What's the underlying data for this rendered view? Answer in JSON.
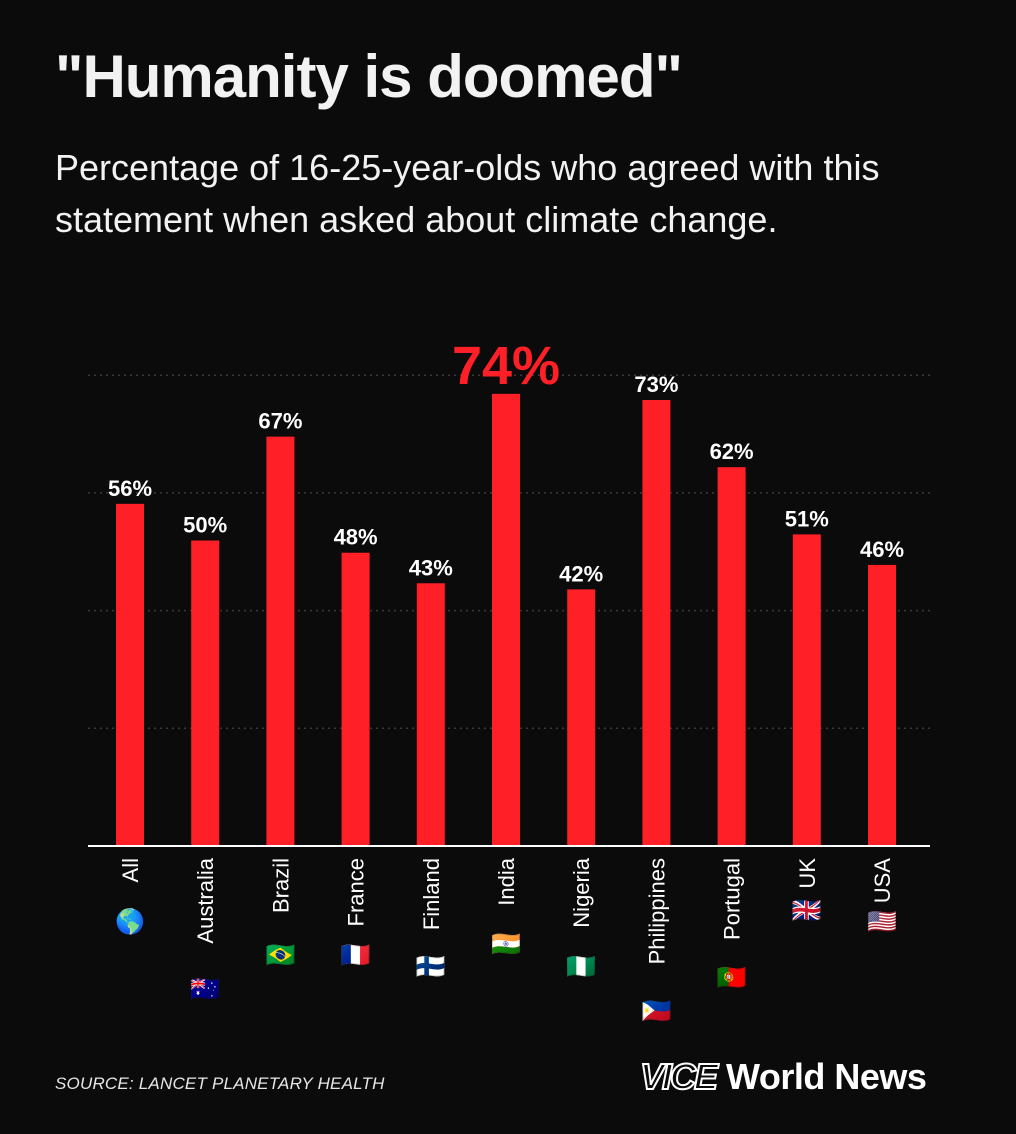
{
  "header": {
    "title": "\"Humanity is doomed\"",
    "subtitle": "Percentage of 16-25-year-olds who agreed with this statement when asked about climate change."
  },
  "chart_data": {
    "type": "bar",
    "categories": [
      "All",
      "Australia",
      "Brazil",
      "France",
      "Finland",
      "India",
      "Nigeria",
      "Philippines",
      "Portugal",
      "UK",
      "USA"
    ],
    "flags": [
      "🌎",
      "🇦🇺",
      "🇧🇷",
      "🇫🇷",
      "🇫🇮",
      "🇮🇳",
      "🇳🇬",
      "🇵🇭",
      "🇵🇹",
      "🇬🇧",
      "🇺🇸"
    ],
    "values": [
      56,
      50,
      67,
      48,
      43,
      74,
      42,
      73,
      62,
      51,
      46
    ],
    "labels": [
      "56%",
      "50%",
      "67%",
      "48%",
      "43%",
      "74%",
      "42%",
      "73%",
      "62%",
      "51%",
      "46%"
    ],
    "highlight_index": 5,
    "ylim": [
      0,
      80
    ],
    "grid": true,
    "colors": {
      "bar": "#ff1f26",
      "highlight_label": "#ff1f26",
      "label": "#ffffff",
      "grid": "#3a3a3a",
      "axis": "#ffffff"
    }
  },
  "footer": {
    "source": "SOURCE: LANCET PLANETARY HEALTH",
    "brand_logo": "VICE",
    "brand_name": "World News"
  }
}
